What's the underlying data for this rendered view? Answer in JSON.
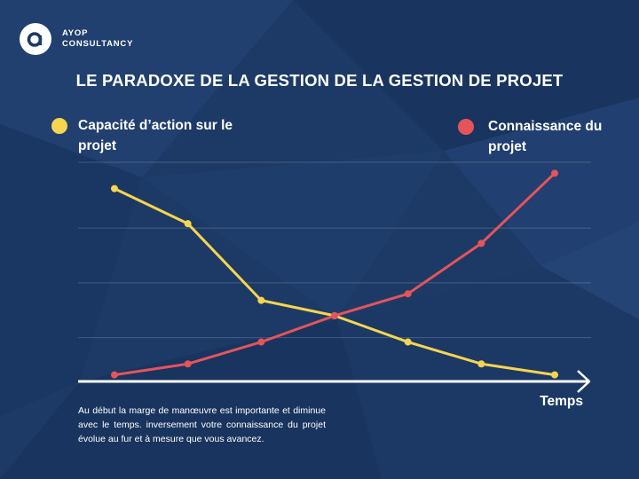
{
  "brand": {
    "name_line1": "AYOP",
    "name_line2": "CONSULTANCY",
    "logo_letter": "a"
  },
  "colors": {
    "background": "#1d3a66",
    "series_yellow": "#f6d54f",
    "series_red": "#e5545b",
    "axis": "#ffffff"
  },
  "chart_data": {
    "type": "line",
    "title": "LE PARADOXE DE LA GESTION DE LA GESTION DE PROJET",
    "xlabel": "Temps",
    "ylabel": "",
    "x": [
      1,
      2,
      3,
      4,
      5,
      6,
      7
    ],
    "ylim": [
      0,
      100
    ],
    "grid": true,
    "legend_placement": "top",
    "series": [
      {
        "name": "Capacité d’action sur le projet",
        "color": "#f6d54f",
        "values": [
          88,
          72,
          37,
          30,
          18,
          8,
          3
        ]
      },
      {
        "name": "Connaissance du projet",
        "color": "#e5545b",
        "values": [
          3,
          8,
          18,
          30,
          40,
          63,
          95
        ]
      }
    ],
    "annotation": "Au début la marge de manœuvre est importante et diminue avec le temps. inversement votre connaissance du projet évolue au fur et à mesure que vous avancez."
  }
}
